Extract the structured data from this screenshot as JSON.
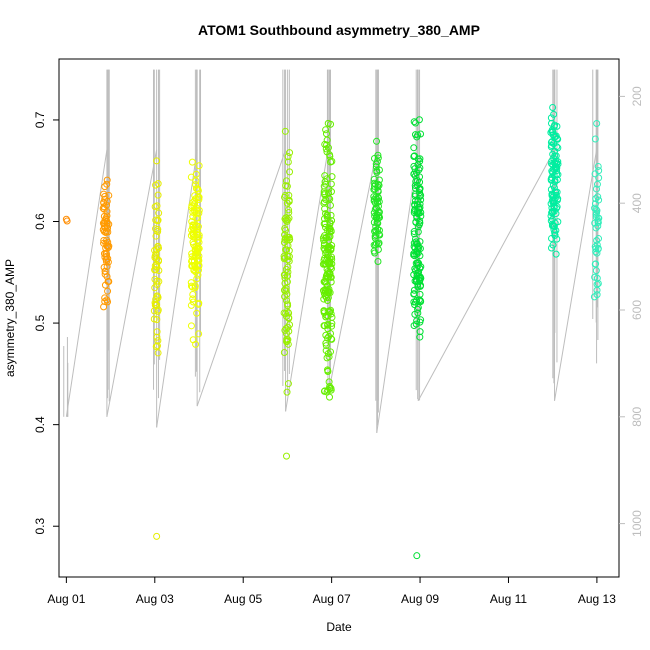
{
  "chart_data": {
    "type": "scatter",
    "title": "ATOM1 Southbound asymmetry_380_AMP",
    "xlabel": "Date",
    "ylabel": "asymmetry_380_AMP",
    "x_axis": {
      "type": "date",
      "range_days": [
        "2024-07-31T20:00",
        "2024-08-13T12:00"
      ],
      "ticks": [
        "Aug 01",
        "Aug 03",
        "Aug 05",
        "Aug 07",
        "Aug 09",
        "Aug 11",
        "Aug 13"
      ]
    },
    "y_axis": {
      "range": [
        0.25,
        0.76
      ],
      "ticks": [
        0.3,
        0.4,
        0.5,
        0.6,
        0.7
      ]
    },
    "y2_axis": {
      "range": [
        1100,
        130
      ],
      "ticks": [
        200,
        400,
        600,
        800,
        1000
      ],
      "color": "#bdbdbd"
    },
    "grid": false,
    "legend": "none",
    "point_style": "open-circle",
    "line_color": "#bdbdbd",
    "clusters": [
      {
        "day": "2024-08-01T00:00",
        "spread_h": 0.5,
        "color": "#ff8c00",
        "n": 2,
        "y_range": [
          0.595,
          0.608
        ]
      },
      {
        "day": "2024-08-01T21:30",
        "spread_h": 1.6,
        "color": "#ff9a00",
        "n": 70,
        "y_range": [
          0.495,
          0.662
        ]
      },
      {
        "day": "2024-08-03T01:00",
        "spread_h": 1.3,
        "color": "#e6ee00",
        "n": 55,
        "y_range": [
          0.43,
          0.685
        ]
      },
      {
        "day": "2024-08-03T22:00",
        "spread_h": 2.2,
        "color": "#eeff00",
        "n": 110,
        "y_range": [
          0.46,
          0.698
        ]
      },
      {
        "day": "2024-08-05T23:40",
        "spread_h": 1.6,
        "color": "#99f000",
        "n": 85,
        "y_range": [
          0.41,
          0.725
        ]
      },
      {
        "day": "2024-08-06T21:50",
        "spread_h": 2.4,
        "color": "#66ee00",
        "n": 180,
        "y_range": [
          0.385,
          0.735
        ]
      },
      {
        "day": "2024-08-08T00:30",
        "spread_h": 1.6,
        "color": "#22e622",
        "n": 70,
        "y_range": [
          0.53,
          0.69
        ]
      },
      {
        "day": "2024-08-08T22:30",
        "spread_h": 2.0,
        "color": "#00e033",
        "n": 140,
        "y_range": [
          0.41,
          0.74
        ]
      },
      {
        "day": "2024-08-12T01:00",
        "spread_h": 2.0,
        "color": "#00eea0",
        "n": 110,
        "y_range": [
          0.535,
          0.742
        ]
      },
      {
        "day": "2024-08-12T23:50",
        "spread_h": 1.2,
        "color": "#33eebb",
        "n": 45,
        "y_range": [
          0.475,
          0.712
        ]
      }
    ],
    "outliers": [
      {
        "x": "2024-08-03T01:00",
        "y": 0.29,
        "color": "#e6ee00"
      },
      {
        "x": "2024-08-05T23:30",
        "y": 0.369,
        "color": "#99f000"
      },
      {
        "x": "2024-08-08T22:15",
        "y": 0.271,
        "color": "#00e033"
      }
    ],
    "gray_lines": [
      {
        "x": "2024-08-01T00:00",
        "y2": [
          800,
          800
        ]
      },
      {
        "x": "2024-08-01T22:00",
        "y2": [
          150,
          800
        ]
      },
      {
        "x": "2024-08-03T01:00",
        "y2": [
          150,
          820
        ]
      },
      {
        "x": "2024-08-03T23:00",
        "y2": [
          150,
          780
        ]
      },
      {
        "x": "2024-08-05T23:00",
        "y2": [
          150,
          790
        ]
      },
      {
        "x": "2024-08-06T22:00",
        "y2": [
          150,
          760
        ]
      },
      {
        "x": "2024-08-08T00:30",
        "y2": [
          150,
          830
        ]
      },
      {
        "x": "2024-08-08T23:00",
        "y2": [
          150,
          770
        ]
      },
      {
        "x": "2024-08-12T01:00",
        "y2": [
          150,
          770
        ]
      },
      {
        "x": "2024-08-12T23:50",
        "y2": [
          150,
          700
        ]
      }
    ]
  }
}
